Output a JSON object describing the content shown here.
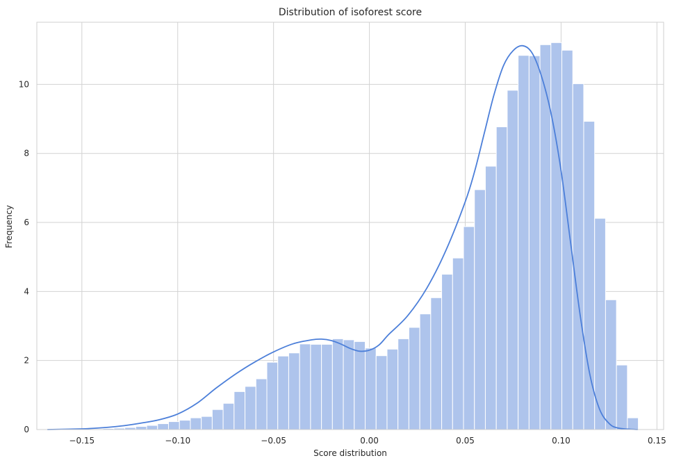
{
  "chart_data": {
    "type": "bar",
    "title": "Distribution of isoforest score",
    "xlabel": "Score distribution",
    "ylabel": "Frequency",
    "xlim": [
      -0.1735,
      0.1535
    ],
    "ylim": [
      0,
      11.8
    ],
    "xticks": [
      -0.15,
      -0.1,
      -0.05,
      0.0,
      0.05,
      0.1,
      0.15
    ],
    "xtick_labels": [
      "−0.15",
      "−0.10",
      "−0.05",
      "0.00",
      "0.05",
      "0.10",
      "0.15"
    ],
    "yticks": [
      0,
      2,
      4,
      6,
      8,
      10
    ],
    "ytick_labels": [
      "0",
      "2",
      "4",
      "6",
      "8",
      "10"
    ],
    "grid": true,
    "bin_start": -0.1675,
    "bin_width": 0.0057,
    "values": [
      0.01,
      0.01,
      0.01,
      0.01,
      0.02,
      0.03,
      0.04,
      0.06,
      0.09,
      0.12,
      0.17,
      0.23,
      0.27,
      0.34,
      0.38,
      0.58,
      0.76,
      1.1,
      1.25,
      1.47,
      1.95,
      2.13,
      2.22,
      2.48,
      2.47,
      2.47,
      2.63,
      2.6,
      2.55,
      2.36,
      2.14,
      2.33,
      2.63,
      2.96,
      3.35,
      3.82,
      4.5,
      4.97,
      5.88,
      6.95,
      7.63,
      8.77,
      9.83,
      10.84,
      10.83,
      11.15,
      11.21,
      10.99,
      10.02,
      8.93,
      6.12,
      3.76,
      1.87,
      0.34
    ],
    "kde": {
      "x": [
        -0.168,
        -0.15,
        -0.14,
        -0.13,
        -0.12,
        -0.11,
        -0.1,
        -0.09,
        -0.08,
        -0.07,
        -0.06,
        -0.05,
        -0.04,
        -0.03,
        -0.025,
        -0.02,
        -0.015,
        -0.01,
        -0.005,
        0.0,
        0.005,
        0.01,
        0.02,
        0.03,
        0.04,
        0.05,
        0.055,
        0.06,
        0.065,
        0.07,
        0.075,
        0.08,
        0.085,
        0.09,
        0.095,
        0.1,
        0.105,
        0.11,
        0.115,
        0.12,
        0.125,
        0.13,
        0.14
      ],
      "y": [
        0.0,
        0.02,
        0.05,
        0.1,
        0.18,
        0.28,
        0.45,
        0.76,
        1.2,
        1.6,
        1.95,
        2.25,
        2.48,
        2.6,
        2.62,
        2.58,
        2.48,
        2.35,
        2.27,
        2.3,
        2.45,
        2.75,
        3.3,
        4.1,
        5.2,
        6.6,
        7.5,
        8.6,
        9.7,
        10.55,
        10.98,
        11.12,
        10.9,
        10.2,
        9.1,
        7.5,
        5.4,
        3.3,
        1.6,
        0.6,
        0.18,
        0.04,
        0.0
      ]
    },
    "colors": {
      "bar": "#aec4ec",
      "bar_edge": "#ffffff",
      "kde": "#4c7fd9",
      "grid": "#d2d2d2",
      "frame": "#cfcfcf"
    }
  }
}
